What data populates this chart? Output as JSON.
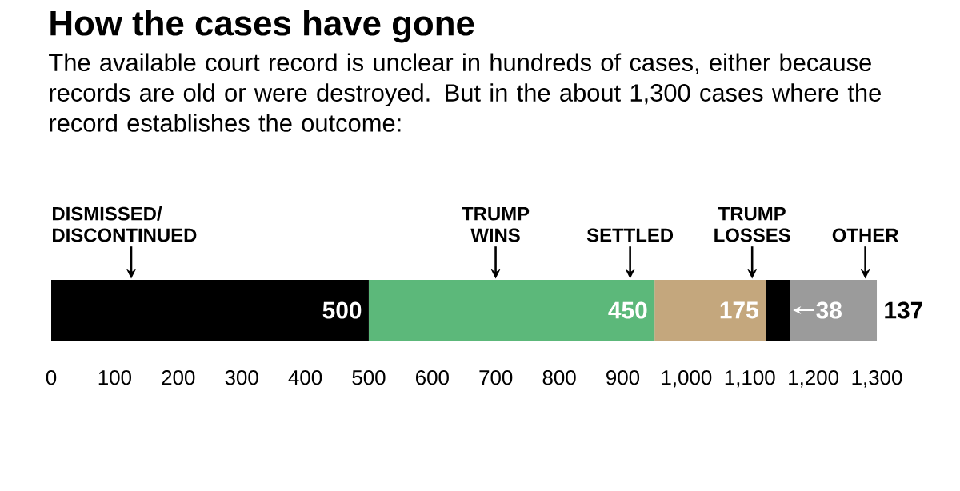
{
  "chart_data": {
    "type": "bar",
    "orientation": "horizontal",
    "stacked": true,
    "title": "How the cases have gone",
    "subtitle": "The available court record is unclear in hundreds of cases, either because records are old or were destroyed. But in the about 1,300 cases where the record establishes the outcome:",
    "categories": [
      null
    ],
    "series": [
      {
        "name": "DISMISSED/ DISCONTINUED",
        "color": "#000000",
        "values": [
          500
        ]
      },
      {
        "name": "TRUMP WINS",
        "color": "#5cb87a",
        "values": [
          450
        ]
      },
      {
        "name": "SETTLED",
        "color": "#c4a77d",
        "values": [
          175
        ]
      },
      {
        "name": "TRUMP LOSSES",
        "color": "#000000",
        "values": [
          38
        ]
      },
      {
        "name": "OTHER",
        "color": "#9b9b9b",
        "values": [
          137
        ]
      }
    ],
    "data_labels": true,
    "xlim": [
      0,
      1300
    ],
    "xticks": [
      0,
      100,
      200,
      300,
      400,
      500,
      600,
      700,
      800,
      900,
      {
        "value": 1000,
        "label": "1,000"
      },
      {
        "value": 1100,
        "label": "1,100"
      },
      {
        "value": 1200,
        "label": "1,200"
      },
      {
        "value": 1300,
        "label": "1,300"
      }
    ]
  }
}
